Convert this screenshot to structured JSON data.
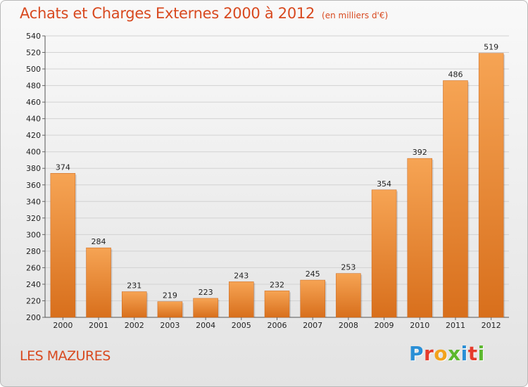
{
  "header": {
    "title": "Achats et Charges Externes 2000 à 2012",
    "unit": "(en milliers d'€)"
  },
  "commune": "LES MAZURES",
  "logo": {
    "letters": [
      {
        "char": "P",
        "color": "#2a8fd6"
      },
      {
        "char": "r",
        "color": "#e53b2c"
      },
      {
        "char": "o",
        "color": "#f2a21c"
      },
      {
        "char": "x",
        "color": "#5cb82e"
      },
      {
        "char": "i",
        "color": "#2a8fd6"
      },
      {
        "char": "t",
        "color": "#e53b2c"
      },
      {
        "char": "i",
        "color": "#5cb82e"
      }
    ]
  },
  "chart_data": {
    "type": "bar",
    "title": "Achats et Charges Externes 2000 à 2012",
    "subtitle": "(en milliers d'€)",
    "categories": [
      "2000",
      "2001",
      "2002",
      "2003",
      "2004",
      "2005",
      "2006",
      "2007",
      "2008",
      "2009",
      "2010",
      "2011",
      "2012"
    ],
    "values": [
      374,
      284,
      231,
      219,
      223,
      243,
      232,
      245,
      253,
      354,
      392,
      486,
      519
    ],
    "ylim": [
      200,
      540
    ],
    "ytick_step": 20,
    "grid": true,
    "bar_color_top": "#f6a454",
    "bar_color_bottom": "#d86f1c",
    "xlabel": "",
    "ylabel": ""
  }
}
